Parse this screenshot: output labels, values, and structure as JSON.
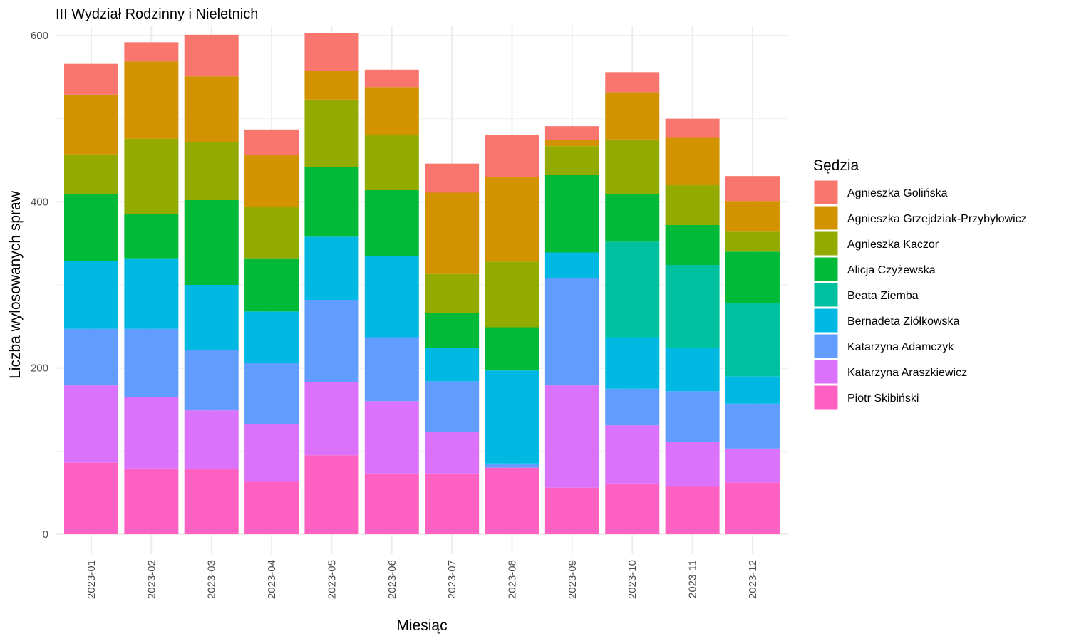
{
  "chart_data": {
    "type": "bar",
    "stacked": true,
    "title": "III Wydział Rodzinny i Nieletnich",
    "xlabel": "Miesiąc",
    "ylabel": "Liczba wylosowanych spraw",
    "ylim": [
      0,
      600
    ],
    "yticks": [
      0,
      200,
      400,
      600
    ],
    "grid": true,
    "legend_position": "right",
    "legend_title": "Sędzia",
    "categories": [
      "2023-01",
      "2023-02",
      "2023-03",
      "2023-04",
      "2023-05",
      "2023-06",
      "2023-07",
      "2023-08",
      "2023-09",
      "2023-10",
      "2023-11",
      "2023-12"
    ],
    "series": [
      {
        "name": "Agnieszka Golińska",
        "color": "#F8766D",
        "values": [
          37,
          23,
          50,
          31,
          45,
          21,
          35,
          50,
          17,
          24,
          23,
          30
        ]
      },
      {
        "name": "Agnieszka Grzejdziak-Przybyłowicz",
        "color": "#D39200",
        "values": [
          72,
          93,
          79,
          62,
          35,
          58,
          98,
          102,
          7,
          57,
          57,
          37
        ]
      },
      {
        "name": "Agnieszka Kaczor",
        "color": "#93AA00",
        "values": [
          48,
          91,
          70,
          62,
          81,
          66,
          47,
          79,
          35,
          66,
          48,
          24
        ]
      },
      {
        "name": "Alicja Czyżewska",
        "color": "#00BA38",
        "values": [
          80,
          53,
          102,
          64,
          84,
          79,
          42,
          52,
          93,
          57,
          48,
          62
        ]
      },
      {
        "name": "Beata Ziemba",
        "color": "#00C19F",
        "values": [
          0,
          0,
          0,
          0,
          0,
          0,
          0,
          0,
          0,
          115,
          100,
          88
        ]
      },
      {
        "name": "Bernadeta Ziółkowska",
        "color": "#00B9E3",
        "values": [
          82,
          85,
          78,
          62,
          76,
          98,
          40,
          112,
          31,
          62,
          52,
          33
        ]
      },
      {
        "name": "Katarzyna Adamczyk",
        "color": "#619CFF",
        "values": [
          68,
          82,
          73,
          74,
          99,
          77,
          61,
          5,
          129,
          44,
          61,
          54
        ]
      },
      {
        "name": "Katarzyna Araszkiewicz",
        "color": "#DB72FB",
        "values": [
          93,
          86,
          71,
          69,
          88,
          87,
          50,
          0,
          123,
          70,
          54,
          41
        ]
      },
      {
        "name": "Piotr Skibiński",
        "color": "#FF61C3",
        "values": [
          86,
          79,
          78,
          63,
          95,
          73,
          73,
          80,
          56,
          61,
          57,
          62
        ]
      }
    ]
  }
}
